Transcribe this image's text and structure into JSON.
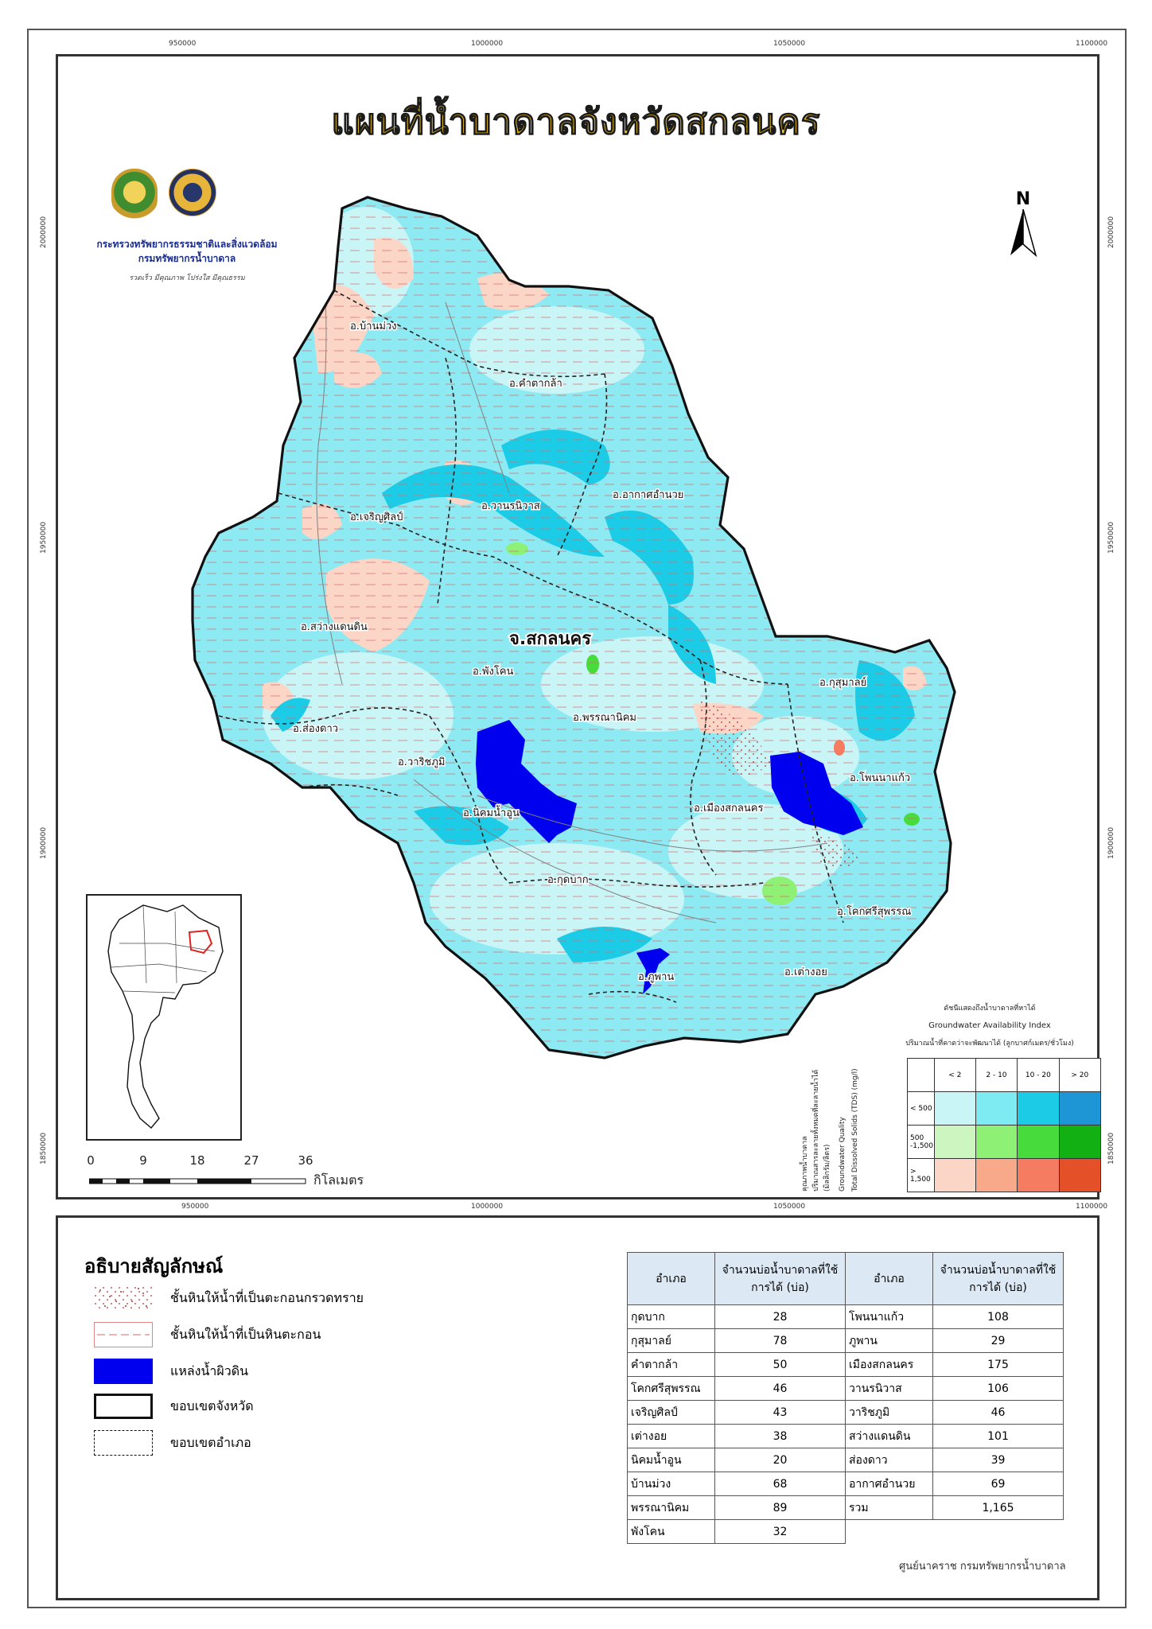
{
  "map": {
    "title": "แผนที่น้ำบาดาลจังหวัดสกลนคร",
    "organization_line1": "กระทรวงทรัพยากรธรรมชาติและสิ่งแวดล้อม",
    "organization_line2": "กรมทรัพยากรน้ำบาดาล",
    "motto": "รวดเร็ว มีคุณภาพ โปร่งใส มีคุณธรรม",
    "north_label": "N",
    "province_label": "จ.สกลนคร",
    "coords_top": [
      "950000",
      "1000000",
      "1050000",
      "1100000"
    ],
    "coords_bottom": [
      "950000",
      "1000000",
      "1050000",
      "1100000"
    ],
    "coords_left": [
      "2000000",
      "1950000",
      "1900000",
      "1850000"
    ],
    "coords_right": [
      "2000000",
      "1950000",
      "1900000",
      "1850000"
    ],
    "district_labels": [
      "อ.บ้านม่วง",
      "อ.คำตากล้า",
      "อ.อากาศอำนวย",
      "อ.เจริญศิลป์",
      "อ.วานรนิวาส",
      "อ.สว่างแดนดิน",
      "อ.พังโคน",
      "อ.กุสุมาลย์",
      "อ.ส่องดาว",
      "อ.พรรณานิคม",
      "อ.วาริชภูมิ",
      "อ.โพนนาแก้ว",
      "อ.นิคมน้ำอูน",
      "อ.เมืองสกลนคร",
      "อ.กุดบาก",
      "อ.โคกศรีสุพรรณ",
      "อ.เต่างอย",
      "อ.ภูพาน"
    ]
  },
  "scale": {
    "ticks": [
      "0",
      "9",
      "18",
      "27",
      "36"
    ],
    "unit": "กิโลเมตร"
  },
  "gw_index": {
    "title_th": "ดัชนีแสดงถึงน้ำบาดาลที่หาได้",
    "title_en": "Groundwater Availability Index",
    "yield_label": "ปริมาณน้ำที่คาดว่าจะพัฒนาได้ (ลูกบาศก์เมตร/ชั่วโมง)",
    "columns": [
      "< 2",
      "2 - 10",
      "10 - 20",
      "> 20"
    ],
    "rows": [
      "< 500",
      "500 -1,500",
      "> 1,500"
    ],
    "vertical_th1": "คุณภาพน้ำบาดาล",
    "vertical_th2": "ปริมาณสารละลายทั้งหมดที่ละลายน้ำได้",
    "vertical_th3": "(มิลลิกรัม/ลิตร)",
    "vertical_en1": "Groundwater Quality",
    "vertical_en2": "Total Dissolved Solids (TDS) (mg/l)",
    "colors": [
      [
        "#c9f5f7",
        "#7eeaf2",
        "#1ccbe6",
        "#1e96d6"
      ],
      [
        "#cdf5c0",
        "#8ef075",
        "#48db3c",
        "#12b012"
      ],
      [
        "#fbd6c6",
        "#f8a98a",
        "#f57c60",
        "#e45028"
      ]
    ]
  },
  "legend": {
    "title": "อธิบายสัญลักษณ์",
    "items": [
      "ชั้นหินให้น้ำที่เป็นตะกอนกรวดทราย",
      "ชั้นหินให้น้ำที่เป็นหินตะกอน",
      "แหล่งน้ำผิวดิน",
      "ขอบเขตจังหวัด",
      "ขอบเขตอำเภอ"
    ]
  },
  "wells": {
    "header_district": "อำเภอ",
    "header_count": "จำนวนบ่อน้ำบาดาลที่ใช้การได้ (บ่อ)",
    "left": [
      {
        "district": "กุดบาก",
        "count": "28"
      },
      {
        "district": "กุสุมาลย์",
        "count": "78"
      },
      {
        "district": "คำตากล้า",
        "count": "50"
      },
      {
        "district": "โคกศรีสุพรรณ",
        "count": "46"
      },
      {
        "district": "เจริญศิลป์",
        "count": "43"
      },
      {
        "district": "เต่างอย",
        "count": "38"
      },
      {
        "district": "นิคมน้ำอูน",
        "count": "20"
      },
      {
        "district": "บ้านม่วง",
        "count": "68"
      },
      {
        "district": "พรรณานิคม",
        "count": "89"
      },
      {
        "district": "พังโคน",
        "count": "32"
      }
    ],
    "right": [
      {
        "district": "โพนนาแก้ว",
        "count": "108"
      },
      {
        "district": "ภูพาน",
        "count": "29"
      },
      {
        "district": "เมืองสกลนคร",
        "count": "175"
      },
      {
        "district": "วานรนิวาส",
        "count": "106"
      },
      {
        "district": "วาริชภูมิ",
        "count": "46"
      },
      {
        "district": "สว่างแดนดิน",
        "count": "101"
      },
      {
        "district": "ส่องดาว",
        "count": "39"
      },
      {
        "district": "อากาศอำนวย",
        "count": "69"
      },
      {
        "district": "รวม",
        "count": "1,165"
      }
    ]
  },
  "credit": "ศูนย์นาคราช กรมทรัพยากรน้ำบาดาล"
}
